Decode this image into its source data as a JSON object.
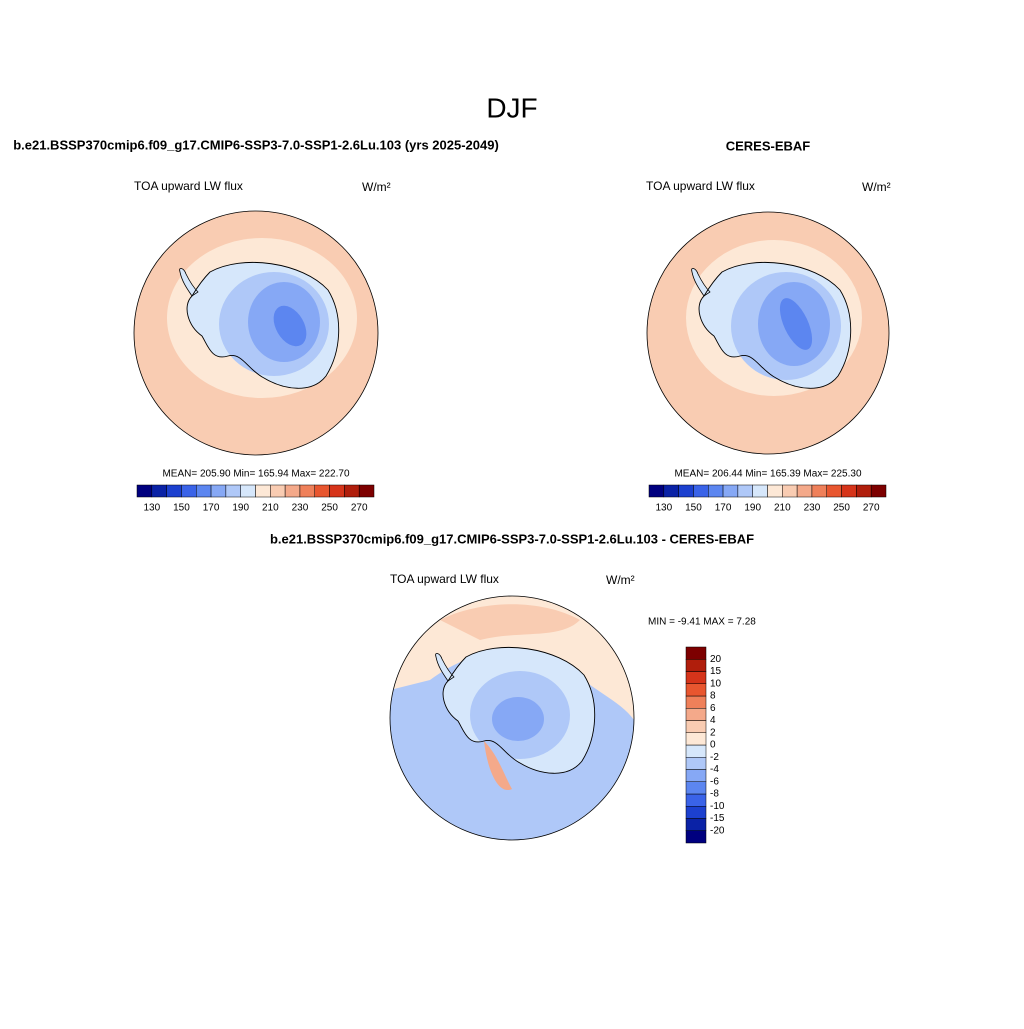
{
  "title": "DJF",
  "colors": [
    "#00007f",
    "#0a22a6",
    "#1c40cf",
    "#3a63e8",
    "#5c86f0",
    "#86a8f5",
    "#afc8f8",
    "#d6e7fb",
    "#fde8d6",
    "#f9ccb2",
    "#f4a98a",
    "#ef805a",
    "#e8562f",
    "#d6341a",
    "#b01e0c",
    "#7d0000"
  ],
  "panels": [
    {
      "title": "b.e21.BSSP370cmip6.f09_g17.CMIP6-SSP3-7.0-SSP1-2.6Lu.103 (yrs 2025-2049)",
      "variable": "TOA upward LW flux",
      "units": "W/m²",
      "stats": "MEAN= 205.90  Min= 165.94  Max= 222.70",
      "colorbar_ticks": [
        130,
        150,
        170,
        190,
        210,
        230,
        250,
        270
      ]
    },
    {
      "title": "CERES-EBAF",
      "variable": "TOA upward LW flux",
      "units": "W/m²",
      "stats": "MEAN= 206.44  Min= 165.39  Max= 225.30",
      "colorbar_ticks": [
        130,
        150,
        170,
        190,
        210,
        230,
        250,
        270
      ]
    }
  ],
  "diff": {
    "title": "b.e21.BSSP370cmip6.f09_g17.CMIP6-SSP3-7.0-SSP1-2.6Lu.103 - CERES-EBAF",
    "variable": "TOA upward LW flux",
    "units": "W/m²",
    "stats": "MIN =  -9.41 MAX =   7.28",
    "colorbar_ticks": [
      -20,
      -15,
      -10,
      -8,
      -6,
      -4,
      -2,
      0,
      2,
      4,
      6,
      8,
      10,
      15,
      20
    ]
  }
}
